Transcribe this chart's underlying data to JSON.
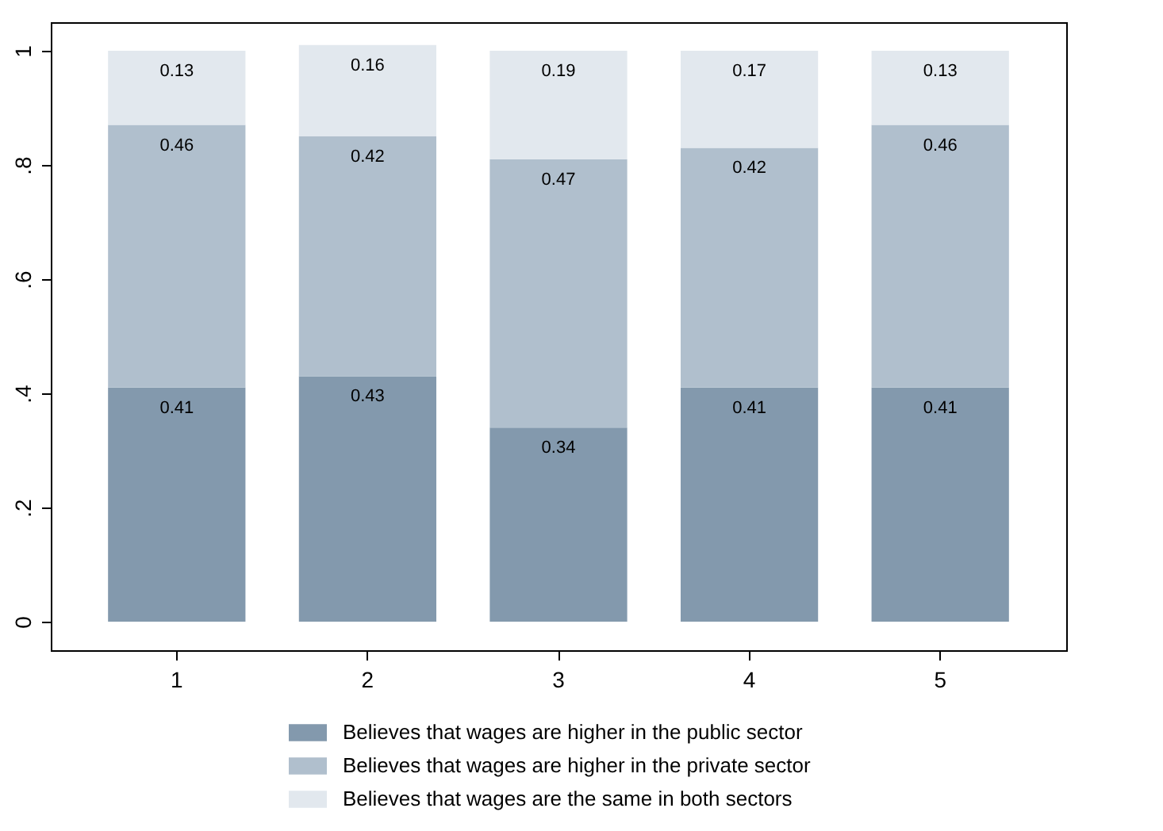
{
  "chart_data": {
    "type": "bar",
    "stacked": true,
    "categories": [
      "1",
      "2",
      "3",
      "4",
      "5"
    ],
    "series": [
      {
        "name": "Believes that wages are higher in the public sector",
        "color": "#8399ad",
        "values": [
          0.41,
          0.43,
          0.34,
          0.41,
          0.41
        ]
      },
      {
        "name": "Believes that wages are higher in the private sector",
        "color": "#b0bfcd",
        "values": [
          0.46,
          0.42,
          0.47,
          0.42,
          0.46
        ]
      },
      {
        "name": "Believes that wages are the same in both sectors",
        "color": "#e2e8ee",
        "values": [
          0.13,
          0.16,
          0.19,
          0.17,
          0.13
        ]
      }
    ],
    "ylim": [
      -0.05,
      1.05
    ],
    "yticks": [
      {
        "value": 0,
        "label": "0"
      },
      {
        "value": 0.2,
        "label": ".2"
      },
      {
        "value": 0.4,
        "label": ".4"
      },
      {
        "value": 0.6,
        "label": ".6"
      },
      {
        "value": 0.8,
        "label": ".8"
      },
      {
        "value": 1,
        "label": "1"
      }
    ],
    "data_labels": true,
    "legend": "bottom",
    "grid": false
  }
}
